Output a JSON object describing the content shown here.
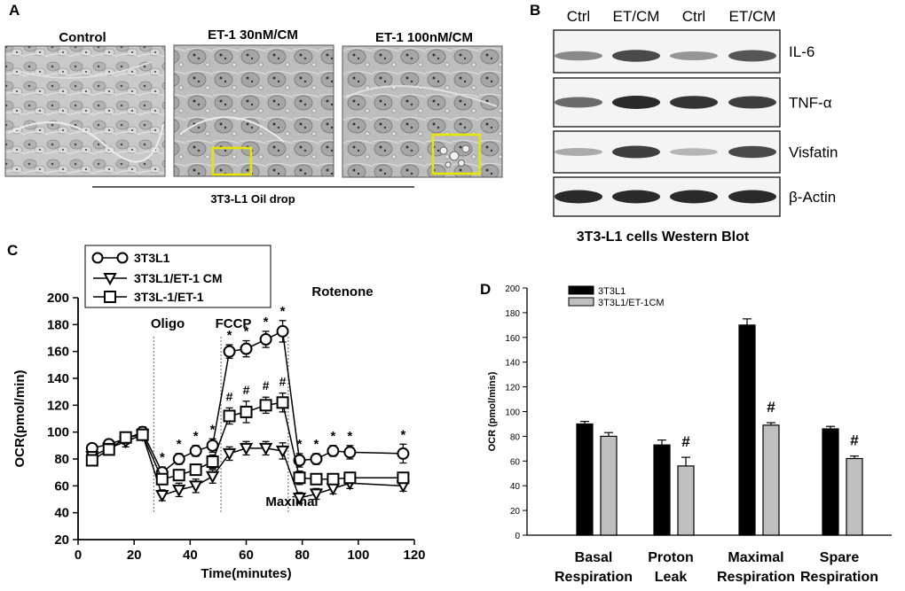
{
  "panels": {
    "A": {
      "letter": "A",
      "titles": [
        "Control",
        "ET-1 30nM/CM",
        "ET-1 100nM/CM"
      ],
      "caption": "3T3-L1 Oil drop"
    },
    "B": {
      "letter": "B",
      "columns": [
        "Ctrl",
        "ET/CM",
        "Ctrl",
        "ET/CM"
      ],
      "blots": [
        {
          "name": "IL-6",
          "intensities": [
            0.45,
            0.75,
            0.4,
            0.7
          ]
        },
        {
          "name": "TNF-α",
          "intensities": [
            0.6,
            0.9,
            0.85,
            0.8
          ]
        },
        {
          "name": "Visfatin",
          "intensities": [
            0.3,
            0.8,
            0.25,
            0.75
          ]
        },
        {
          "name": "β-Actin",
          "intensities": [
            0.9,
            0.9,
            0.9,
            0.9
          ]
        }
      ],
      "caption": "3T3-L1 cells Western Blot"
    }
  },
  "chart_data": [
    {
      "id": "C",
      "letter": "C",
      "type": "line",
      "xlabel": "Time(minutes)",
      "ylabel": "OCR(pmol/min)",
      "xlim": [
        0,
        120
      ],
      "ylim": [
        20,
        200
      ],
      "xticks": [
        0,
        20,
        40,
        60,
        80,
        100,
        120
      ],
      "yticks": [
        20,
        40,
        60,
        80,
        100,
        120,
        140,
        160,
        180,
        200
      ],
      "x": [
        5,
        12,
        18,
        24,
        30,
        36,
        42,
        48,
        54,
        60,
        66,
        72,
        78,
        84,
        90,
        96,
        116
      ],
      "series": [
        {
          "name": "3T3L1",
          "marker": "circle",
          "x": [
            5,
            11,
            17,
            23,
            30,
            36,
            42,
            48,
            54,
            60,
            67,
            73,
            79,
            85,
            91,
            97,
            116
          ],
          "values": [
            88,
            91,
            95,
            100,
            70,
            80,
            86,
            90,
            160,
            162,
            169,
            175,
            79,
            80,
            86,
            85,
            84
          ],
          "errors": [
            3,
            3,
            4,
            4,
            4,
            4,
            4,
            5,
            5,
            6,
            6,
            8,
            5,
            4,
            4,
            5,
            7
          ]
        },
        {
          "name": "3T3L1/ET-1 CM",
          "marker": "triangle-down",
          "x": [
            5,
            11,
            17,
            23,
            30,
            36,
            42,
            48,
            54,
            60,
            67,
            73,
            79,
            85,
            91,
            97,
            116
          ],
          "values": [
            82,
            88,
            93,
            98,
            53,
            57,
            60,
            67,
            84,
            88,
            88,
            86,
            51,
            54,
            58,
            62,
            60
          ],
          "errors": [
            3,
            3,
            4,
            4,
            4,
            5,
            5,
            5,
            5,
            5,
            5,
            6,
            4,
            4,
            4,
            4,
            4
          ]
        },
        {
          "name": "3T3L-1/ET-1",
          "marker": "square",
          "x": [
            5,
            11,
            17,
            23,
            30,
            36,
            42,
            48,
            54,
            60,
            67,
            73,
            79,
            85,
            91,
            97,
            116
          ],
          "values": [
            79,
            87,
            96,
            98,
            65,
            68,
            72,
            78,
            112,
            115,
            120,
            122,
            66,
            65,
            65,
            66,
            66
          ],
          "errors": [
            3,
            3,
            4,
            4,
            4,
            4,
            4,
            5,
            6,
            8,
            6,
            7,
            5,
            4,
            4,
            4,
            4
          ]
        }
      ],
      "injections": [
        {
          "label": "Oligo",
          "x": 27
        },
        {
          "label": "FCCP",
          "x": 51
        },
        {
          "label": "Rotenone",
          "x": 75
        }
      ],
      "region_label": "Maximal",
      "star_marks": [
        "*",
        "*",
        "*",
        "*",
        "*",
        "*",
        "*",
        "*",
        "*",
        "*",
        "*",
        "*",
        "*"
      ],
      "hash_marks": [
        "#",
        "#",
        "#",
        "#"
      ],
      "legend_position": "top-left"
    },
    {
      "id": "D",
      "letter": "D",
      "type": "bar",
      "ylabel": "OCR (pmol/mins)",
      "ylim": [
        0,
        200
      ],
      "yticks": [
        0,
        20,
        40,
        60,
        80,
        100,
        120,
        140,
        160,
        180,
        200
      ],
      "categories": [
        "Basal\nRespiration",
        "Proton\nLeak",
        "Maximal\nRespiration",
        "Spare\nRespiration"
      ],
      "series": [
        {
          "name": "3T3L1",
          "color": "#000000",
          "values": [
            90,
            73,
            170,
            86
          ],
          "errors": [
            2,
            4,
            5,
            2
          ]
        },
        {
          "name": "3T3L1/ET-1CM",
          "color": "#bfbfbf",
          "values": [
            80,
            56,
            89,
            62
          ],
          "errors": [
            3,
            7,
            2,
            2
          ]
        }
      ],
      "significance": [
        "",
        "#",
        "#",
        "#"
      ],
      "legend_position": "top-left"
    }
  ]
}
